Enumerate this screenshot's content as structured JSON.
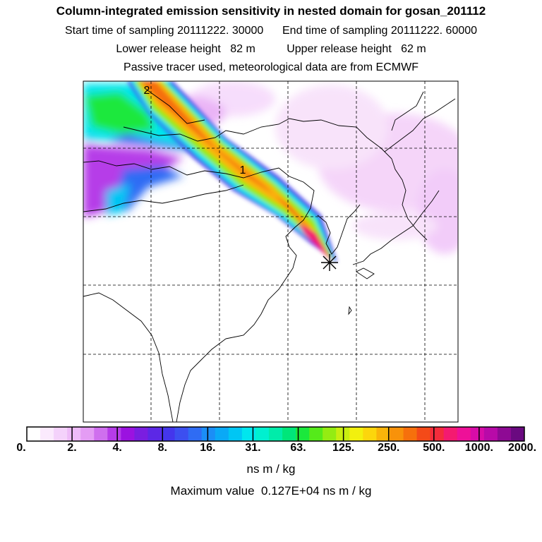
{
  "header": {
    "title": "Column-integrated emission sensitivity in nested domain for gosan_201112",
    "sampling": "Start time of sampling 20111222. 30000      End time of sampling 20111222. 60000",
    "release": "Lower release height   82 m          Upper release height   62 m",
    "tracer": "Passive tracer used, meteorological data are from ECMWF"
  },
  "map": {
    "labels": [
      {
        "text": "2"
      },
      {
        "text": "1"
      }
    ],
    "receptor_marker": "asterisk-icon"
  },
  "colorbar": {
    "tick_labels": [
      "0.",
      "2.",
      "4.",
      "8.",
      "16.",
      "31.",
      "63.",
      "125.",
      "250.",
      "500.",
      "1000.",
      "2000."
    ],
    "colors": [
      "#ffffff",
      "#fbeafd",
      "#f4d2fb",
      "#eebbf8",
      "#e49cf4",
      "#cf6fee",
      "#b63ce8",
      "#9b12e0",
      "#7a1ee0",
      "#5c28e6",
      "#4436ec",
      "#3c4ff0",
      "#2f6cf4",
      "#1b8ef6",
      "#0aa9f6",
      "#00c6f4",
      "#00e6ee",
      "#00f0d0",
      "#00ecaa",
      "#00e67a",
      "#1be83c",
      "#55ea1a",
      "#94ec12",
      "#c8ee10",
      "#f2f00e",
      "#fcd60c",
      "#fab40a",
      "#f8920a",
      "#f6700c",
      "#f44a18",
      "#f42c3c",
      "#f41a70",
      "#ee1098",
      "#d80ca8",
      "#b80aa8",
      "#8e0a94",
      "#6a0a80"
    ],
    "units": "ns m / kg",
    "max_value": "Maximum value  0.127E+04 ns m / kg"
  }
}
